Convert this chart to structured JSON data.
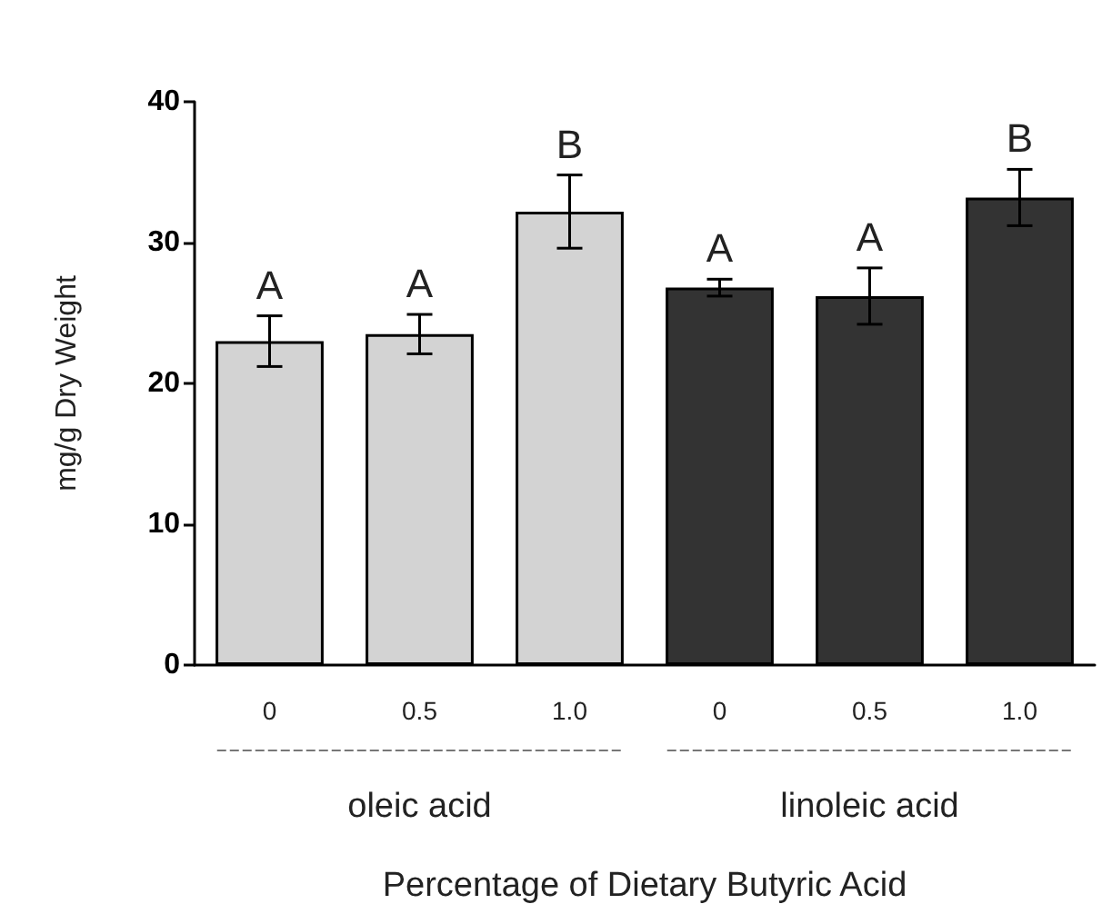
{
  "chart_data": {
    "type": "bar",
    "xlabel": "Percentage of Dietary Butyric Acid",
    "ylabel": "mg/g Dry Weight",
    "categories": [
      "0",
      "0.5",
      "1.0",
      "0",
      "0.5",
      "1.0"
    ],
    "values": [
      23,
      23.5,
      32.2,
      26.8,
      26.2,
      33.2
    ],
    "errors": [
      1.8,
      1.4,
      2.6,
      0.6,
      2.0,
      2.0
    ],
    "value_labels": [
      "A",
      "A",
      "B",
      "A",
      "A",
      "B"
    ],
    "colors": [
      "#d3d3d3",
      "#d3d3d3",
      "#d3d3d3",
      "#333333",
      "#333333",
      "#333333"
    ],
    "ylim": [
      0,
      40
    ],
    "yticks": [
      0,
      10,
      20,
      30,
      40
    ],
    "annotations": [
      "oleic acid",
      "linoleic acid"
    ]
  }
}
